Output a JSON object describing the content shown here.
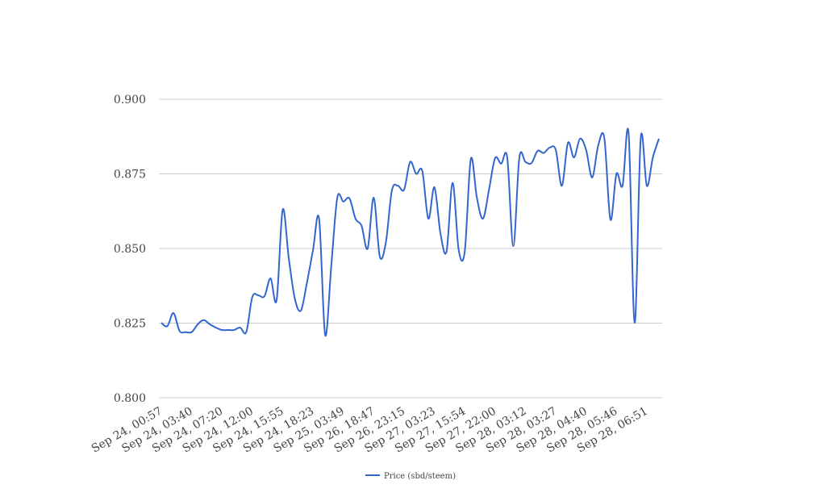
{
  "chart_data": {
    "type": "line",
    "categories": [
      "Sep 24, 00:57",
      null,
      null,
      null,
      null,
      "Sep 24, 03:40",
      null,
      null,
      null,
      null,
      "Sep 24, 07:20",
      null,
      null,
      null,
      null,
      "Sep 24, 12:00",
      null,
      null,
      null,
      null,
      "Sep 24, 15:55",
      null,
      null,
      null,
      null,
      "Sep 24, 18:23",
      null,
      null,
      null,
      null,
      "Sep 25, 03:49",
      null,
      null,
      null,
      null,
      "Sep 26, 18:47",
      null,
      null,
      null,
      null,
      "Sep 26, 23:15",
      null,
      null,
      null,
      null,
      "Sep 27, 03:23",
      null,
      null,
      null,
      null,
      "Sep 27, 15:54",
      null,
      null,
      null,
      null,
      "Sep 27, 22:00",
      null,
      null,
      null,
      null,
      "Sep 28, 03:12",
      null,
      null,
      null,
      null,
      "Sep 28, 03:27",
      null,
      null,
      null,
      null,
      "Sep 28, 04:40",
      null,
      null,
      null,
      null,
      "Sep 28, 05:46",
      null,
      null,
      null,
      null,
      "Sep 28, 06:51",
      null,
      null
    ],
    "series": [
      {
        "name": "Price (sbd/steem)",
        "color": "#3366cc",
        "values": [
          0.8251,
          0.824,
          0.8284,
          0.8224,
          0.822,
          0.822,
          0.8246,
          0.826,
          0.8246,
          0.8235,
          0.8227,
          0.8227,
          0.8227,
          0.8235,
          0.822,
          0.8338,
          0.8343,
          0.834,
          0.84,
          0.8327,
          0.863,
          0.8468,
          0.8332,
          0.8292,
          0.8386,
          0.8495,
          0.86,
          0.821,
          0.844,
          0.867,
          0.8657,
          0.8668,
          0.86,
          0.8576,
          0.85,
          0.867,
          0.8473,
          0.852,
          0.8695,
          0.871,
          0.8697,
          0.879,
          0.875,
          0.876,
          0.86,
          0.8705,
          0.855,
          0.849,
          0.872,
          0.8495,
          0.849,
          0.88,
          0.867,
          0.86,
          0.8697,
          0.8803,
          0.8784,
          0.8805,
          0.8508,
          0.8805,
          0.879,
          0.8786,
          0.8827,
          0.882,
          0.8838,
          0.883,
          0.871,
          0.8854,
          0.8805,
          0.8868,
          0.883,
          0.8738,
          0.8846,
          0.887,
          0.8597,
          0.875,
          0.871,
          0.8886,
          0.8251,
          0.887,
          0.871,
          0.8805,
          0.8868
        ]
      }
    ],
    "ylim": [
      0.8,
      0.9
    ],
    "yticks": [
      {
        "value": 0.8,
        "label": "0.800"
      },
      0.825,
      {
        "value": 0.85,
        "label": "0.850"
      },
      0.875,
      {
        "value": 0.9,
        "label": "0.900"
      }
    ],
    "grid": true,
    "legend": "bottom"
  }
}
